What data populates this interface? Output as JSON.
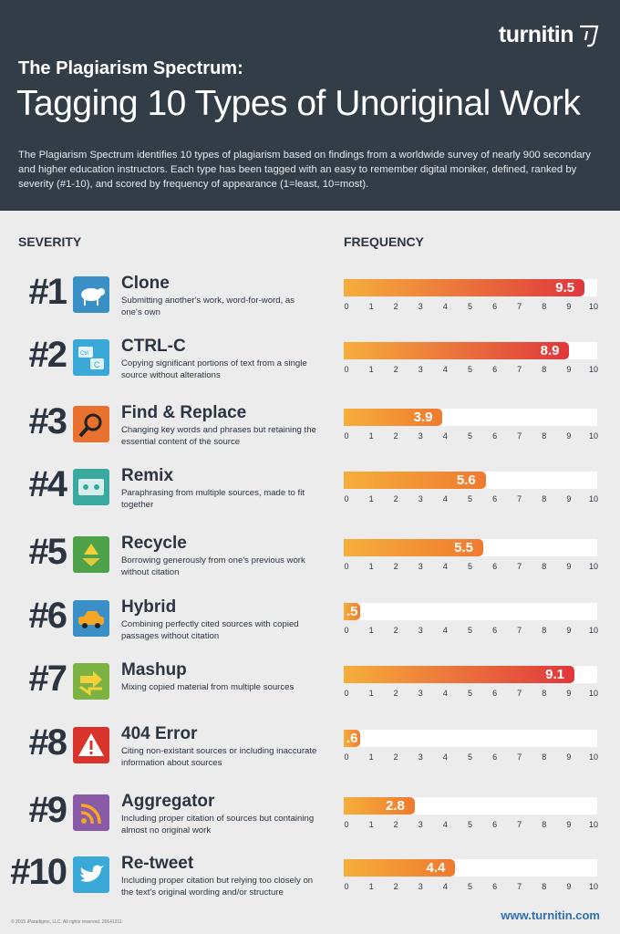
{
  "header": {
    "logo_text": "turnitin",
    "title_small": "The Plagiarism Spectrum:",
    "title_big": "Tagging 10 Types of Unoriginal Work",
    "intro": "The Plagiarism Spectrum identifies 10 types of plagiarism based on findings from a worldwide survey of nearly 900 secondary and higher education instructors. Each type has been tagged with an easy to remember digital moniker, defined, ranked by severity (#1-10), and scored by frequency of appearance (1=least, 10=most)."
  },
  "columns": {
    "severity": "SEVERITY",
    "frequency": "FREQUENCY"
  },
  "colors": {
    "header_bg": "#333d48",
    "bar_start": "#f6ae3b",
    "bar_end": "#e0373c",
    "text_dark": "#2b3440"
  },
  "chart_data": {
    "type": "bar",
    "orientation": "horizontal",
    "xlim": [
      0,
      10
    ],
    "ticks": [
      "0",
      "1",
      "2",
      "3",
      "4",
      "5",
      "6",
      "7",
      "8",
      "9",
      "10"
    ],
    "categories": [
      "Clone",
      "CTRL-C",
      "Find & Replace",
      "Remix",
      "Recycle",
      "Hybrid",
      "Mashup",
      "404 Error",
      "Aggregator",
      "Re-tweet"
    ],
    "values": [
      9.5,
      8.9,
      3.9,
      5.6,
      5.5,
      0.5,
      9.1,
      0.6,
      2.8,
      4.4
    ],
    "labels": [
      "9.5",
      "8.9",
      "3.9",
      "5.6",
      "5.5",
      ".5",
      "9.1",
      ".6",
      "2.8",
      "4.4"
    ]
  },
  "items": [
    {
      "rank": "#1",
      "name": "Clone",
      "desc": "Submitting another's work, word-for-word, as one's own",
      "icon": "sheep-icon",
      "icon_color": "#3a8fc7"
    },
    {
      "rank": "#2",
      "name": "CTRL-C",
      "desc": "Copying significant portions of text from a single source without alterations",
      "icon": "ctrl-c-keys-icon",
      "icon_color": "#3aa9d8"
    },
    {
      "rank": "#3",
      "name": "Find & Replace",
      "desc": "Changing key words and phrases but retaining the essential content of the source",
      "icon": "magnifier-icon",
      "icon_color": "#e8722d"
    },
    {
      "rank": "#4",
      "name": "Remix",
      "desc": "Paraphrasing from multiple sources, made to fit together",
      "icon": "cassette-icon",
      "icon_color": "#3aa9a0"
    },
    {
      "rank": "#5",
      "name": "Recycle",
      "desc": "Borrowing generously from one's previous work without citation",
      "icon": "recycle-icon",
      "icon_color": "#4fa24a"
    },
    {
      "rank": "#6",
      "name": "Hybrid",
      "desc": "Combining perfectly cited sources with copied passages without citation",
      "icon": "car-icon",
      "icon_color": "#3a8fc7"
    },
    {
      "rank": "#7",
      "name": "Mashup",
      "desc": "Mixing copied material from multiple sources",
      "icon": "mashup-arrows-icon",
      "icon_color": "#7bb241"
    },
    {
      "rank": "#8",
      "name": "404 Error",
      "desc": "Citing non-existant sources or including inaccurate information about sources",
      "icon": "warning-icon",
      "icon_color": "#d9342b"
    },
    {
      "rank": "#9",
      "name": "Aggregator",
      "desc": "Including proper citation of sources but containing almost no original work",
      "icon": "rss-icon",
      "icon_color": "#8a5aa8"
    },
    {
      "rank": "#10",
      "name": "Re-tweet",
      "desc": "Including proper citation but relying too closely on the text's original wording and/or structure",
      "icon": "bird-icon",
      "icon_color": "#3aa9d8"
    }
  ],
  "footer": {
    "copyright": "© 2015 iParadigms, LLC. All rights reserved. 20141211",
    "url": "www.turnitin.com"
  }
}
